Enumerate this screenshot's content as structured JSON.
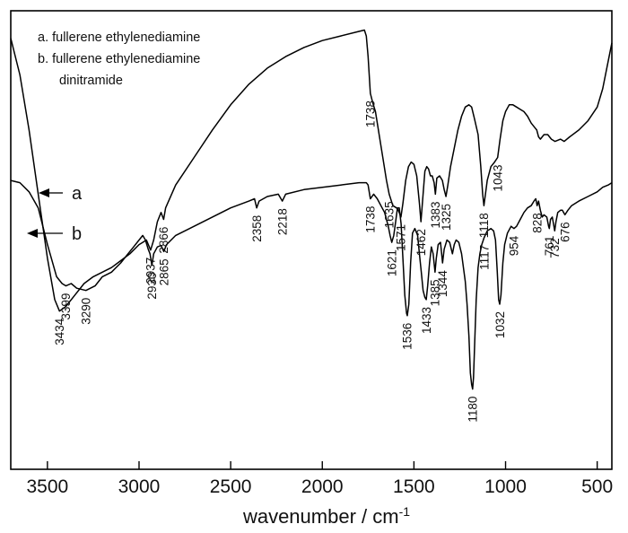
{
  "chart_data": {
    "type": "line",
    "title": "",
    "xlabel": "wavenumber / cm",
    "xlabel_superscript": "-1",
    "ylabel": "",
    "xlim": [
      3700,
      420
    ],
    "x_reversed": true,
    "y_ticks_shown": false,
    "xticks": [
      3500,
      3000,
      2500,
      2000,
      1500,
      1000,
      500
    ],
    "xtick_labels": [
      "3500",
      "3000",
      "2500",
      "2000",
      "1500",
      "1000",
      "500"
    ],
    "legend": {
      "placement": "top-left",
      "entries": [
        "a. fullerene ethylenediamine",
        "b. fullerene ethylenediamine",
        "dinitramide"
      ]
    },
    "curve_labels": [
      "a",
      "b"
    ],
    "series": [
      {
        "id": "a",
        "points": [
          [
            3700,
            0.94
          ],
          [
            3650,
            0.86
          ],
          [
            3600,
            0.74
          ],
          [
            3550,
            0.6
          ],
          [
            3500,
            0.46
          ],
          [
            3460,
            0.37
          ],
          [
            3434,
            0.345
          ],
          [
            3400,
            0.355
          ],
          [
            3350,
            0.38
          ],
          [
            3300,
            0.405
          ],
          [
            3250,
            0.42
          ],
          [
            3200,
            0.43
          ],
          [
            3150,
            0.44
          ],
          [
            3100,
            0.455
          ],
          [
            3050,
            0.47
          ],
          [
            3000,
            0.49
          ],
          [
            2980,
            0.495
          ],
          [
            2960,
            0.5
          ],
          [
            2937,
            0.478
          ],
          [
            2920,
            0.5
          ],
          [
            2900,
            0.54
          ],
          [
            2880,
            0.56
          ],
          [
            2866,
            0.545
          ],
          [
            2855,
            0.57
          ],
          [
            2800,
            0.62
          ],
          [
            2700,
            0.68
          ],
          [
            2600,
            0.74
          ],
          [
            2500,
            0.795
          ],
          [
            2400,
            0.84
          ],
          [
            2300,
            0.875
          ],
          [
            2200,
            0.9
          ],
          [
            2100,
            0.92
          ],
          [
            2000,
            0.935
          ],
          [
            1900,
            0.945
          ],
          [
            1800,
            0.955
          ],
          [
            1770,
            0.958
          ],
          [
            1760,
            0.945
          ],
          [
            1750,
            0.9
          ],
          [
            1738,
            0.82
          ],
          [
            1725,
            0.8
          ],
          [
            1710,
            0.78
          ],
          [
            1690,
            0.73
          ],
          [
            1670,
            0.68
          ],
          [
            1650,
            0.63
          ],
          [
            1635,
            0.6
          ],
          [
            1615,
            0.575
          ],
          [
            1595,
            0.57
          ],
          [
            1585,
            0.565
          ],
          [
            1571,
            0.55
          ],
          [
            1560,
            0.58
          ],
          [
            1545,
            0.63
          ],
          [
            1530,
            0.66
          ],
          [
            1515,
            0.67
          ],
          [
            1500,
            0.665
          ],
          [
            1485,
            0.64
          ],
          [
            1470,
            0.58
          ],
          [
            1462,
            0.54
          ],
          [
            1450,
            0.6
          ],
          [
            1440,
            0.65
          ],
          [
            1430,
            0.66
          ],
          [
            1420,
            0.655
          ],
          [
            1410,
            0.64
          ],
          [
            1400,
            0.64
          ],
          [
            1390,
            0.625
          ],
          [
            1383,
            0.6
          ],
          [
            1375,
            0.635
          ],
          [
            1360,
            0.64
          ],
          [
            1345,
            0.63
          ],
          [
            1335,
            0.61
          ],
          [
            1325,
            0.595
          ],
          [
            1315,
            0.62
          ],
          [
            1300,
            0.66
          ],
          [
            1280,
            0.7
          ],
          [
            1260,
            0.74
          ],
          [
            1240,
            0.77
          ],
          [
            1220,
            0.79
          ],
          [
            1200,
            0.795
          ],
          [
            1185,
            0.79
          ],
          [
            1170,
            0.765
          ],
          [
            1150,
            0.73
          ],
          [
            1135,
            0.66
          ],
          [
            1125,
            0.6
          ],
          [
            1118,
            0.575
          ],
          [
            1110,
            0.6
          ],
          [
            1100,
            0.63
          ],
          [
            1080,
            0.66
          ],
          [
            1060,
            0.67
          ],
          [
            1043,
            0.68
          ],
          [
            1030,
            0.72
          ],
          [
            1015,
            0.76
          ],
          [
            1000,
            0.78
          ],
          [
            980,
            0.795
          ],
          [
            960,
            0.795
          ],
          [
            940,
            0.79
          ],
          [
            920,
            0.785
          ],
          [
            900,
            0.78
          ],
          [
            880,
            0.77
          ],
          [
            860,
            0.755
          ],
          [
            840,
            0.745
          ],
          [
            830,
            0.74
          ],
          [
            820,
            0.725
          ],
          [
            810,
            0.72
          ],
          [
            800,
            0.725
          ],
          [
            790,
            0.73
          ],
          [
            770,
            0.73
          ],
          [
            750,
            0.72
          ],
          [
            730,
            0.715
          ],
          [
            700,
            0.72
          ],
          [
            680,
            0.715
          ],
          [
            650,
            0.725
          ],
          [
            600,
            0.74
          ],
          [
            550,
            0.76
          ],
          [
            500,
            0.79
          ],
          [
            470,
            0.83
          ],
          [
            445,
            0.88
          ],
          [
            420,
            0.93
          ]
        ]
      },
      {
        "id": "b",
        "points": [
          [
            3700,
            0.63
          ],
          [
            3650,
            0.625
          ],
          [
            3600,
            0.605
          ],
          [
            3550,
            0.57
          ],
          [
            3500,
            0.49
          ],
          [
            3450,
            0.42
          ],
          [
            3420,
            0.405
          ],
          [
            3399,
            0.4
          ],
          [
            3370,
            0.405
          ],
          [
            3340,
            0.395
          ],
          [
            3290,
            0.39
          ],
          [
            3240,
            0.4
          ],
          [
            3200,
            0.42
          ],
          [
            3150,
            0.43
          ],
          [
            3100,
            0.45
          ],
          [
            3060,
            0.47
          ],
          [
            3030,
            0.485
          ],
          [
            3000,
            0.5
          ],
          [
            2980,
            0.51
          ],
          [
            2965,
            0.5
          ],
          [
            2950,
            0.48
          ],
          [
            2940,
            0.47
          ],
          [
            2930,
            0.445
          ],
          [
            2920,
            0.47
          ],
          [
            2900,
            0.485
          ],
          [
            2880,
            0.488
          ],
          [
            2865,
            0.475
          ],
          [
            2850,
            0.49
          ],
          [
            2800,
            0.51
          ],
          [
            2700,
            0.53
          ],
          [
            2600,
            0.55
          ],
          [
            2500,
            0.57
          ],
          [
            2400,
            0.585
          ],
          [
            2370,
            0.59
          ],
          [
            2358,
            0.57
          ],
          [
            2345,
            0.585
          ],
          [
            2300,
            0.595
          ],
          [
            2240,
            0.6
          ],
          [
            2218,
            0.585
          ],
          [
            2200,
            0.6
          ],
          [
            2100,
            0.61
          ],
          [
            2000,
            0.615
          ],
          [
            1900,
            0.62
          ],
          [
            1800,
            0.625
          ],
          [
            1760,
            0.625
          ],
          [
            1750,
            0.62
          ],
          [
            1738,
            0.59
          ],
          [
            1720,
            0.6
          ],
          [
            1700,
            0.59
          ],
          [
            1680,
            0.575
          ],
          [
            1660,
            0.56
          ],
          [
            1640,
            0.53
          ],
          [
            1630,
            0.51
          ],
          [
            1621,
            0.495
          ],
          [
            1610,
            0.51
          ],
          [
            1600,
            0.54
          ],
          [
            1590,
            0.57
          ],
          [
            1580,
            0.57
          ],
          [
            1570,
            0.535
          ],
          [
            1560,
            0.46
          ],
          [
            1550,
            0.38
          ],
          [
            1540,
            0.34
          ],
          [
            1536,
            0.335
          ],
          [
            1528,
            0.36
          ],
          [
            1518,
            0.45
          ],
          [
            1508,
            0.515
          ],
          [
            1495,
            0.525
          ],
          [
            1480,
            0.51
          ],
          [
            1470,
            0.47
          ],
          [
            1460,
            0.43
          ],
          [
            1450,
            0.39
          ],
          [
            1440,
            0.375
          ],
          [
            1433,
            0.37
          ],
          [
            1425,
            0.4
          ],
          [
            1415,
            0.45
          ],
          [
            1405,
            0.485
          ],
          [
            1395,
            0.47
          ],
          [
            1385,
            0.43
          ],
          [
            1378,
            0.46
          ],
          [
            1368,
            0.49
          ],
          [
            1355,
            0.495
          ],
          [
            1344,
            0.45
          ],
          [
            1335,
            0.48
          ],
          [
            1320,
            0.5
          ],
          [
            1305,
            0.495
          ],
          [
            1290,
            0.47
          ],
          [
            1280,
            0.49
          ],
          [
            1270,
            0.5
          ],
          [
            1255,
            0.495
          ],
          [
            1240,
            0.47
          ],
          [
            1220,
            0.41
          ],
          [
            1210,
            0.36
          ],
          [
            1200,
            0.29
          ],
          [
            1192,
            0.21
          ],
          [
            1185,
            0.185
          ],
          [
            1180,
            0.175
          ],
          [
            1175,
            0.2
          ],
          [
            1168,
            0.28
          ],
          [
            1160,
            0.37
          ],
          [
            1150,
            0.44
          ],
          [
            1140,
            0.47
          ],
          [
            1130,
            0.49
          ],
          [
            1117,
            0.505
          ],
          [
            1100,
            0.52
          ],
          [
            1080,
            0.525
          ],
          [
            1065,
            0.52
          ],
          [
            1055,
            0.5
          ],
          [
            1045,
            0.43
          ],
          [
            1038,
            0.37
          ],
          [
            1032,
            0.36
          ],
          [
            1025,
            0.38
          ],
          [
            1015,
            0.45
          ],
          [
            1005,
            0.49
          ],
          [
            990,
            0.515
          ],
          [
            970,
            0.53
          ],
          [
            954,
            0.525
          ],
          [
            940,
            0.53
          ],
          [
            920,
            0.545
          ],
          [
            900,
            0.56
          ],
          [
            880,
            0.57
          ],
          [
            860,
            0.575
          ],
          [
            845,
            0.585
          ],
          [
            835,
            0.59
          ],
          [
            828,
            0.575
          ],
          [
            820,
            0.585
          ],
          [
            810,
            0.565
          ],
          [
            800,
            0.55
          ],
          [
            790,
            0.555
          ],
          [
            775,
            0.55
          ],
          [
            765,
            0.53
          ],
          [
            761,
            0.525
          ],
          [
            755,
            0.545
          ],
          [
            745,
            0.55
          ],
          [
            738,
            0.535
          ],
          [
            732,
            0.52
          ],
          [
            725,
            0.54
          ],
          [
            715,
            0.56
          ],
          [
            700,
            0.565
          ],
          [
            690,
            0.565
          ],
          [
            676,
            0.555
          ],
          [
            660,
            0.565
          ],
          [
            640,
            0.575
          ],
          [
            600,
            0.585
          ],
          [
            550,
            0.595
          ],
          [
            500,
            0.605
          ],
          [
            470,
            0.615
          ],
          [
            440,
            0.62
          ],
          [
            420,
            0.625
          ]
        ]
      }
    ],
    "annotations": [
      {
        "text": "3434",
        "x": 3434,
        "y": 0.345
      },
      {
        "text": "3399",
        "x": 3399,
        "y": 0.4
      },
      {
        "text": "3290",
        "x": 3290,
        "y": 0.39
      },
      {
        "text": "2937",
        "x": 2937,
        "y": 0.478
      },
      {
        "text": "2866",
        "x": 2866,
        "y": 0.545
      },
      {
        "text": "2930",
        "x": 2930,
        "y": 0.445
      },
      {
        "text": "2865",
        "x": 2865,
        "y": 0.475
      },
      {
        "text": "2358",
        "x": 2358,
        "y": 0.57
      },
      {
        "text": "2218",
        "x": 2218,
        "y": 0.585
      },
      {
        "text": "1738",
        "x": 1738,
        "y": 0.82
      },
      {
        "text": "1635",
        "x": 1635,
        "y": 0.6
      },
      {
        "text": "1571",
        "x": 1571,
        "y": 0.55
      },
      {
        "text": "1462",
        "x": 1462,
        "y": 0.54
      },
      {
        "text": "1383",
        "x": 1383,
        "y": 0.6
      },
      {
        "text": "1325",
        "x": 1325,
        "y": 0.595
      },
      {
        "text": "1118",
        "x": 1118,
        "y": 0.575
      },
      {
        "text": "1043",
        "x": 1043,
        "y": 0.68
      },
      {
        "text": "1738",
        "x": 1738,
        "y": 0.59
      },
      {
        "text": "1621",
        "x": 1621,
        "y": 0.495
      },
      {
        "text": "1536",
        "x": 1536,
        "y": 0.335
      },
      {
        "text": "1433",
        "x": 1433,
        "y": 0.37
      },
      {
        "text": "1385",
        "x": 1385,
        "y": 0.43
      },
      {
        "text": "1344",
        "x": 1344,
        "y": 0.45
      },
      {
        "text": "1180",
        "x": 1180,
        "y": 0.175
      },
      {
        "text": "1117",
        "x": 1117,
        "y": 0.505
      },
      {
        "text": "1032",
        "x": 1032,
        "y": 0.36
      },
      {
        "text": "954",
        "x": 954,
        "y": 0.525
      },
      {
        "text": "828",
        "x": 828,
        "y": 0.575
      },
      {
        "text": "761",
        "x": 761,
        "y": 0.525
      },
      {
        "text": "732",
        "x": 732,
        "y": 0.52
      },
      {
        "text": "676",
        "x": 676,
        "y": 0.555
      }
    ],
    "colors": {
      "line": "#000000",
      "background": "#ffffff"
    }
  }
}
